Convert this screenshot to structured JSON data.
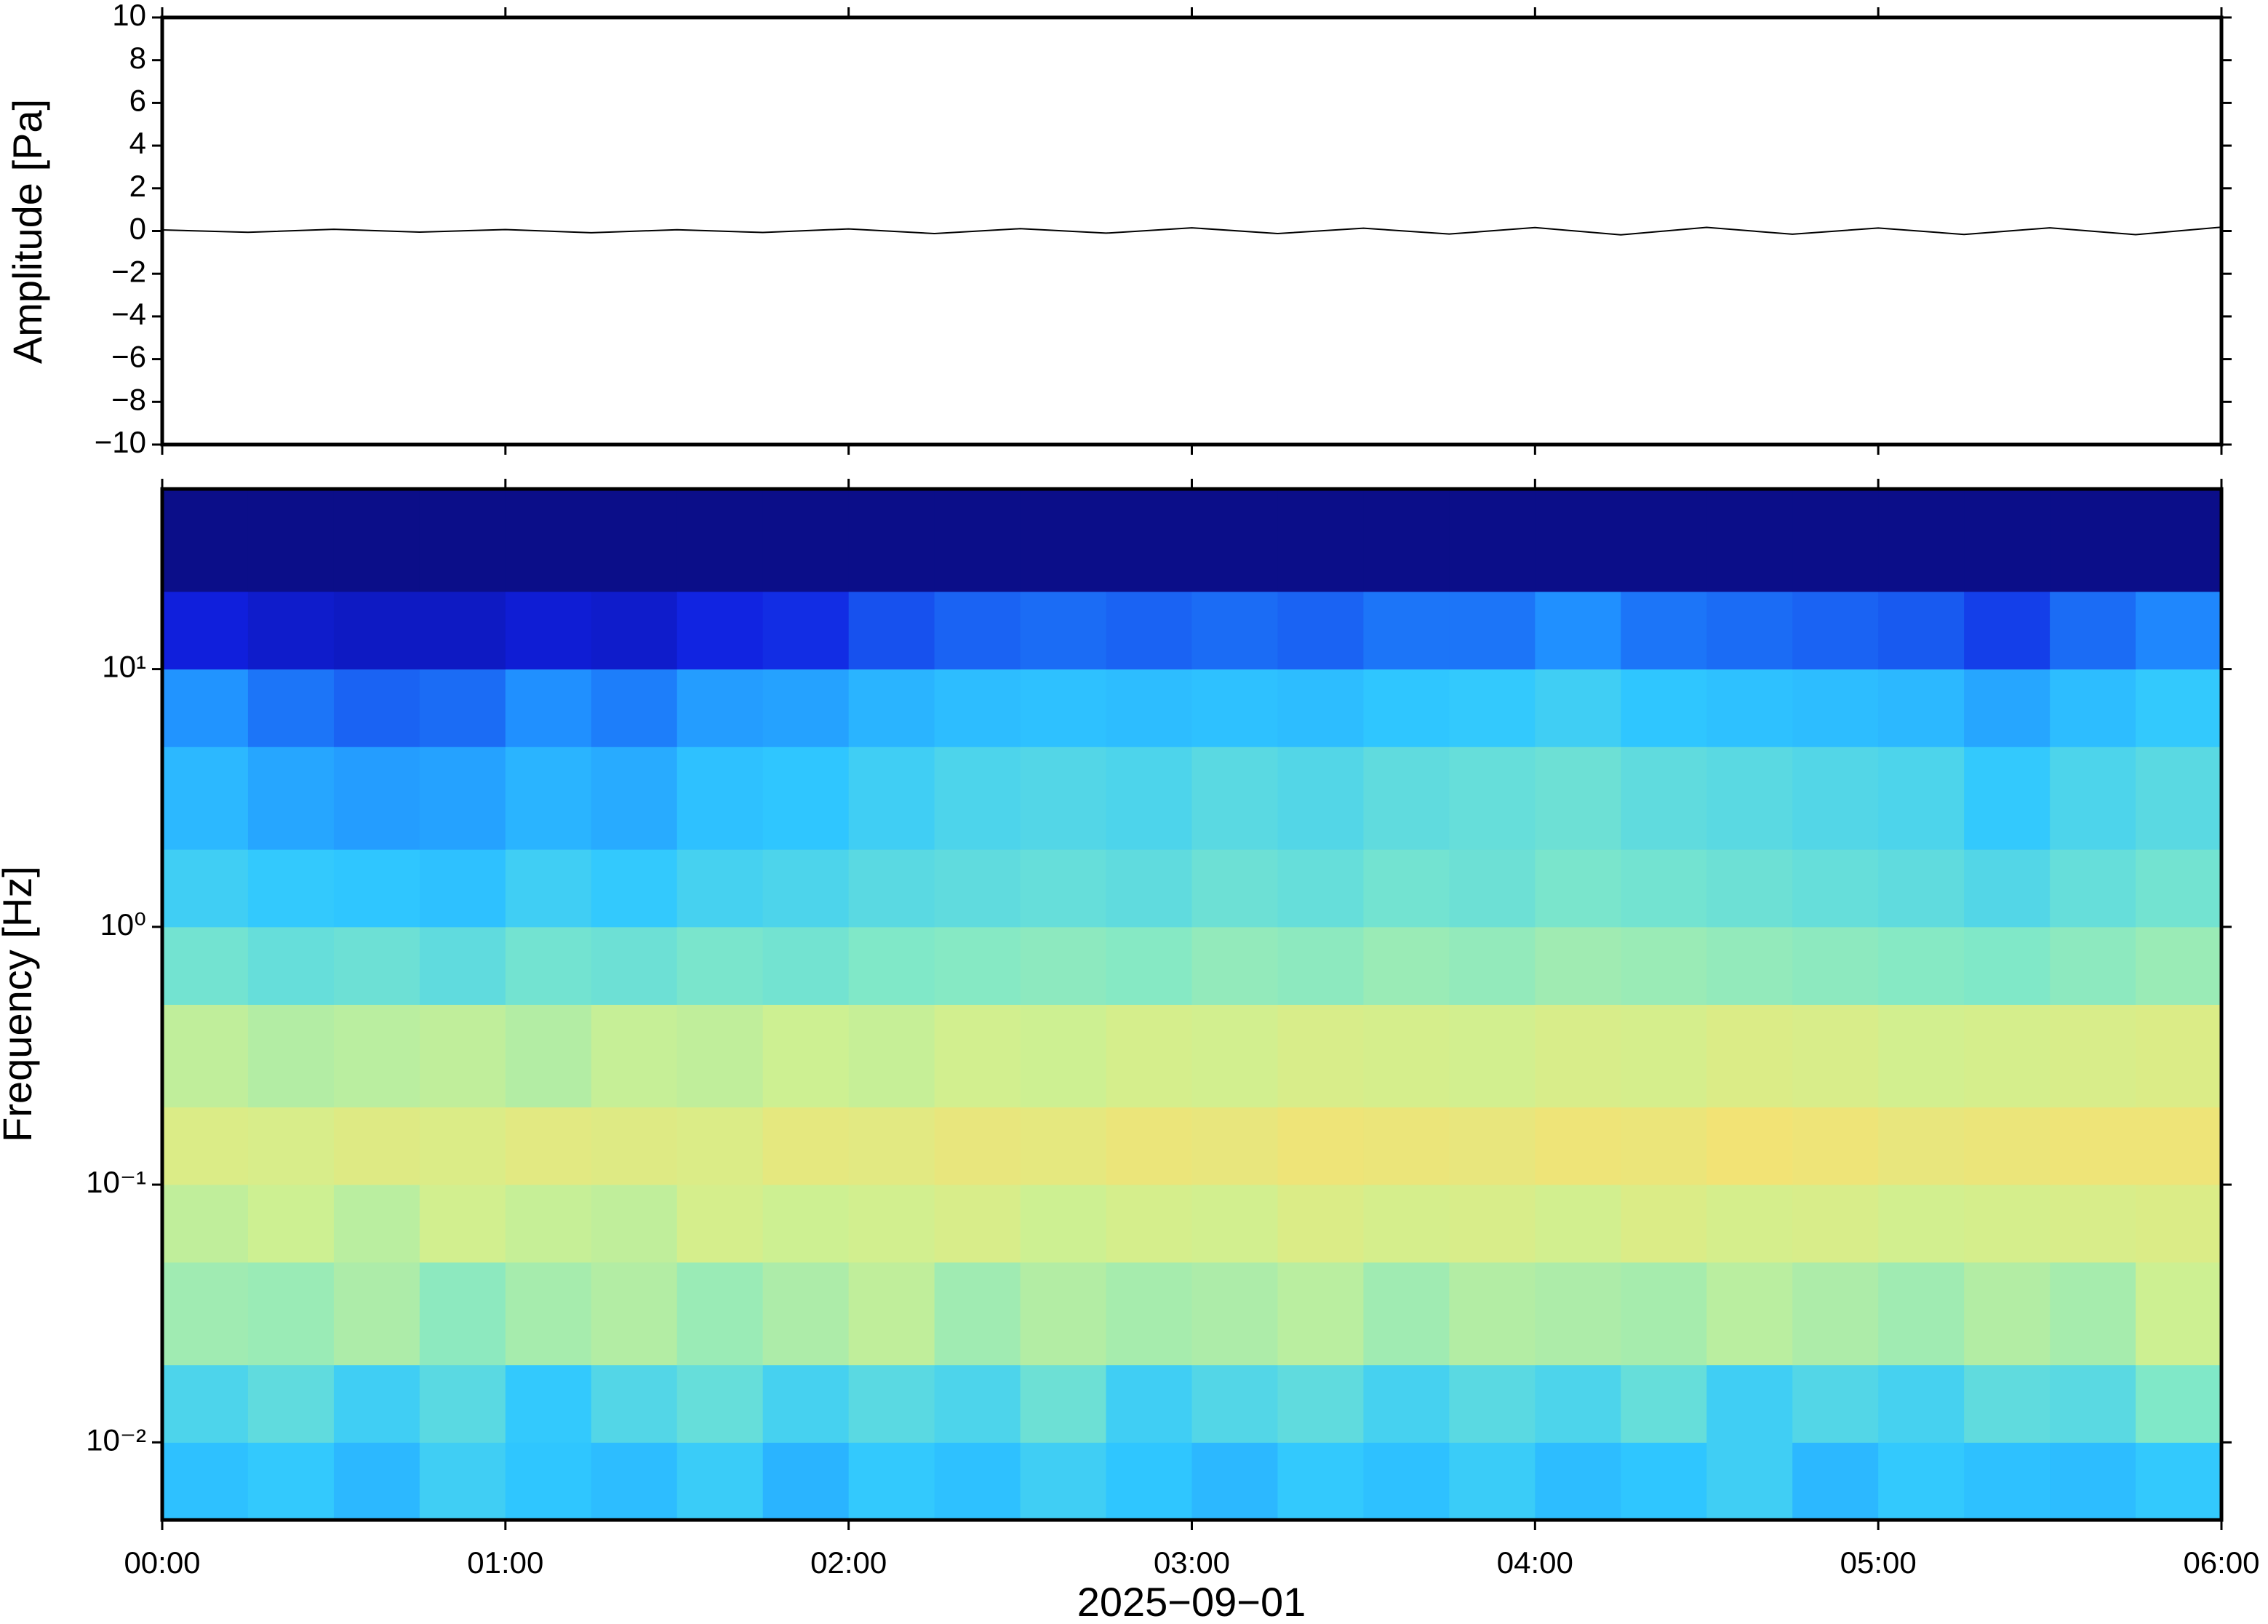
{
  "chart_data": [
    {
      "type": "line",
      "ylabel": "Amplitude [Pa]",
      "x": [
        0,
        15,
        30,
        45,
        60,
        75,
        90,
        105,
        120,
        135,
        150,
        165,
        180,
        195,
        210,
        225,
        240,
        255,
        270,
        285,
        300,
        315,
        330,
        345,
        360
      ],
      "series": [
        {
          "name": "Amplitude",
          "color": "#000000",
          "values": [
            0.05,
            -0.06,
            0.08,
            -0.05,
            0.07,
            -0.08,
            0.06,
            -0.07,
            0.1,
            -0.12,
            0.11,
            -0.1,
            0.15,
            -0.12,
            0.13,
            -0.14,
            0.16,
            -0.18,
            0.17,
            -0.15,
            0.14,
            -0.16,
            0.15,
            -0.17,
            0.18
          ]
        }
      ],
      "xlim": [
        0,
        360
      ],
      "ylim": [
        -10,
        10
      ],
      "yticks": [
        {
          "value": -10,
          "label": "−10"
        },
        {
          "value": -8,
          "label": "−8"
        },
        {
          "value": -6,
          "label": "−6"
        },
        {
          "value": -4,
          "label": "−4"
        },
        {
          "value": -2,
          "label": "−2"
        },
        0,
        2,
        4,
        6,
        8,
        10
      ]
    },
    {
      "type": "heatmap",
      "ylabel": "Frequency [Hz]",
      "xlabel": "2025−09−01",
      "xlim": [
        0,
        360
      ],
      "xticks": [
        {
          "value": 0,
          "label": "00:00"
        },
        {
          "value": 60,
          "label": "01:00"
        },
        {
          "value": 120,
          "label": "02:00"
        },
        {
          "value": 180,
          "label": "03:00"
        },
        {
          "value": 240,
          "label": "04:00"
        },
        {
          "value": 300,
          "label": "05:00"
        },
        {
          "value": 360,
          "label": "06:00"
        }
      ],
      "ylim": [
        0.005,
        50
      ],
      "log_y": true,
      "yticks": [
        {
          "value": 0.01,
          "label": "10⁻²"
        },
        {
          "value": 0.1,
          "label": "10⁻¹"
        },
        {
          "value": 1,
          "label": "10⁰"
        },
        {
          "value": 10,
          "label": "10¹"
        }
      ],
      "xbins": [
        0,
        15,
        30,
        45,
        60,
        75,
        90,
        105,
        120,
        135,
        150,
        165,
        180,
        195,
        210,
        225,
        240,
        255,
        270,
        285,
        300,
        315,
        330,
        345,
        360
      ],
      "ybins": [
        0.005,
        0.01,
        0.02,
        0.05,
        0.1,
        0.2,
        0.5,
        1,
        2,
        5,
        10,
        20,
        50
      ],
      "zlim": [
        0,
        100
      ],
      "colormap": [
        "#0a0a78",
        "#1020e0",
        "#2090ff",
        "#30c8ff",
        "#80e8c8",
        "#d0f090",
        "#f8e070",
        "#f09040",
        "#d02020"
      ],
      "z": [
        [
          36,
          38,
          34,
          40,
          37,
          35,
          39,
          33,
          38,
          36,
          40,
          37,
          34,
          38,
          36,
          39,
          35,
          37,
          40,
          34,
          38,
          36,
          35,
          38
        ],
        [
          42,
          45,
          40,
          44,
          38,
          43,
          46,
          41,
          44,
          42,
          47,
          40,
          43,
          45,
          41,
          44,
          42,
          46,
          40,
          43,
          41,
          45,
          44,
          50
        ],
        [
          55,
          54,
          57,
          52,
          56,
          58,
          54,
          57,
          60,
          55,
          58,
          56,
          57,
          59,
          55,
          58,
          57,
          56,
          59,
          57,
          55,
          58,
          56,
          62
        ],
        [
          60,
          62,
          59,
          63,
          61,
          60,
          64,
          62,
          63,
          65,
          62,
          64,
          63,
          66,
          64,
          65,
          63,
          66,
          64,
          65,
          63,
          64,
          65,
          66
        ],
        [
          66,
          65,
          67,
          66,
          68,
          67,
          66,
          69,
          68,
          70,
          69,
          71,
          70,
          72,
          71,
          70,
          72,
          71,
          73,
          72,
          70,
          71,
          72,
          72
        ],
        [
          60,
          58,
          59,
          60,
          58,
          61,
          60,
          62,
          61,
          63,
          62,
          64,
          63,
          65,
          64,
          63,
          65,
          64,
          66,
          65,
          63,
          64,
          65,
          66
        ],
        [
          48,
          46,
          47,
          45,
          48,
          47,
          49,
          48,
          50,
          51,
          52,
          51,
          53,
          52,
          54,
          53,
          55,
          54,
          53,
          52,
          51,
          50,
          52,
          54
        ],
        [
          40,
          38,
          37,
          36,
          40,
          38,
          41,
          42,
          44,
          45,
          46,
          45,
          47,
          46,
          48,
          47,
          49,
          48,
          47,
          46,
          45,
          43,
          46,
          48
        ],
        [
          34,
          30,
          28,
          29,
          33,
          31,
          36,
          37,
          40,
          42,
          43,
          42,
          44,
          43,
          45,
          46,
          47,
          45,
          44,
          43,
          42,
          38,
          42,
          44
        ],
        [
          26,
          22,
          20,
          21,
          25,
          23,
          28,
          29,
          33,
          35,
          36,
          35,
          36,
          35,
          37,
          38,
          40,
          37,
          36,
          35,
          34,
          30,
          35,
          38
        ],
        [
          12,
          10,
          9,
          9,
          11,
          10,
          13,
          14,
          18,
          20,
          21,
          20,
          21,
          20,
          22,
          22,
          25,
          22,
          21,
          20,
          19,
          16,
          21,
          24
        ],
        [
          2,
          2,
          2,
          2,
          2,
          2,
          2,
          2,
          2,
          2,
          2,
          2,
          2,
          2,
          2,
          2,
          2,
          2,
          2,
          2,
          2,
          2,
          2,
          2
        ]
      ]
    }
  ]
}
